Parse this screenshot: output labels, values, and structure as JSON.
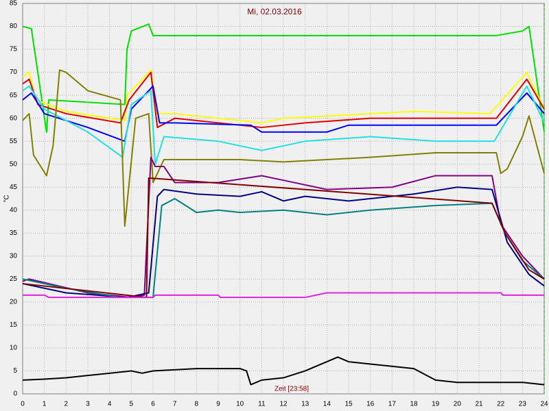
{
  "chart_data": {
    "type": "line",
    "title": "Mi, 02.03.2016",
    "y_label": "°C",
    "x_label": "Zeit [23:58]",
    "xlim": [
      0,
      24
    ],
    "ylim": [
      0,
      85
    ],
    "xticks": [
      0,
      1,
      2,
      3,
      4,
      5,
      6,
      7,
      8,
      9,
      10,
      11,
      12,
      13,
      14,
      15,
      16,
      17,
      18,
      19,
      20,
      21,
      22,
      23,
      24
    ],
    "yticks": [
      0,
      5,
      10,
      15,
      20,
      25,
      30,
      35,
      40,
      45,
      50,
      55,
      60,
      65,
      70,
      75,
      80,
      85
    ],
    "grid": true,
    "series": [
      {
        "color": "#00e000",
        "x": [
          0,
          0.4,
          1.1,
          1.2,
          4.7,
          4.8,
          5,
          5.8,
          6,
          12,
          21.8,
          23,
          23.3,
          24
        ],
        "values": [
          80,
          79.5,
          57,
          64,
          63,
          75,
          79,
          80.5,
          78,
          78,
          78,
          79,
          80,
          57
        ]
      },
      {
        "color": "#ffff00",
        "x": [
          0,
          0.3,
          0.6,
          2,
          4.7,
          4.8,
          5.9,
          6.2,
          7,
          11,
          12,
          16,
          18,
          21.5,
          23.2,
          24
        ],
        "values": [
          69,
          70,
          64,
          61.5,
          59.5,
          65,
          70.5,
          61,
          61,
          59,
          60,
          61,
          61.5,
          61,
          70,
          62
        ]
      },
      {
        "color": "#e00000",
        "x": [
          0,
          0.3,
          0.7,
          2,
          4.5,
          4.9,
          5.9,
          6.2,
          7,
          11,
          13,
          16,
          21.8,
          23.2,
          24
        ],
        "values": [
          67.5,
          68.5,
          63,
          61,
          59,
          64,
          70,
          58,
          60,
          58,
          59,
          60,
          60,
          68.5,
          62
        ]
      },
      {
        "color": "#0000ff",
        "x": [
          0,
          0.4,
          1,
          3,
          4.7,
          5,
          6,
          6.3,
          7,
          10.5,
          11,
          14,
          15,
          21.8,
          23.2,
          24
        ],
        "values": [
          64,
          65.5,
          61,
          58,
          55,
          62,
          67,
          59,
          59,
          58.5,
          57,
          57,
          58.5,
          58.5,
          65.5,
          61
        ]
      },
      {
        "color": "#20e0e0",
        "x": [
          0,
          0.3,
          1,
          3,
          4.6,
          5,
          5.9,
          6.1,
          6.5,
          9,
          11,
          13,
          16,
          19,
          21.7,
          23.2,
          24
        ],
        "values": [
          66,
          67,
          62,
          57,
          51.5,
          63,
          66,
          50,
          56,
          55,
          53,
          55,
          56,
          55,
          55,
          67,
          59
        ]
      },
      {
        "color": "#808000",
        "x": [
          0,
          0.3,
          0.5,
          1.1,
          1.4,
          1.7,
          2,
          3,
          4.5,
          4.7,
          5.2,
          5.8,
          6,
          6.5,
          10,
          12,
          16,
          19,
          21.8,
          22,
          22.3,
          23,
          23.3,
          24
        ],
        "values": [
          59.5,
          61,
          52,
          47.5,
          54,
          70.5,
          70,
          66,
          64,
          36.5,
          60,
          61,
          46,
          51,
          51,
          50.5,
          51.5,
          52.5,
          52.5,
          48,
          49,
          56,
          60.5,
          48
        ]
      },
      {
        "color": "#800080",
        "x": [
          0,
          0.3,
          3,
          5,
          5.6,
          5.9,
          6.1,
          6.5,
          7,
          9,
          11,
          12,
          14,
          17,
          19,
          21.6,
          22,
          23,
          24
        ],
        "values": [
          24.5,
          25,
          22,
          21,
          21.5,
          51.5,
          49.5,
          49.5,
          46,
          46,
          47.5,
          46.5,
          44.5,
          45,
          47.5,
          47.5,
          37,
          30,
          25
        ]
      },
      {
        "color": "#000080",
        "x": [
          0,
          2,
          4.8,
          5.8,
          6.2,
          6.5,
          8,
          10,
          11,
          12,
          13,
          15,
          18,
          20,
          21.6,
          22.3,
          23.3,
          24
        ],
        "values": [
          24,
          22,
          21,
          22,
          43,
          44.5,
          43.5,
          43,
          44,
          42,
          43,
          42,
          43.5,
          45,
          44.5,
          33,
          26,
          23.5
        ]
      },
      {
        "color": "#008080",
        "x": [
          0,
          2,
          4.5,
          6,
          6.4,
          7,
          8,
          9,
          10,
          12,
          14,
          16,
          19,
          21.6,
          22.2,
          23,
          24
        ],
        "values": [
          25,
          23,
          21,
          21,
          41,
          42.5,
          39.5,
          40,
          39.5,
          40,
          39,
          40,
          41,
          41.5,
          35,
          29,
          25
        ]
      },
      {
        "color": "#800000",
        "x": [
          0,
          5.7,
          5.8,
          21.6,
          22.2,
          23.3,
          24
        ],
        "values": [
          24,
          21,
          47,
          41.5,
          35,
          27,
          25
        ]
      },
      {
        "color": "#e020e0",
        "x": [
          0,
          1,
          1.2,
          6,
          6.1,
          9,
          9.1,
          13,
          14,
          22,
          22.1,
          24
        ],
        "values": [
          21.5,
          21.5,
          21,
          21,
          21.5,
          21.5,
          21,
          21,
          22,
          22,
          21.5,
          21.5
        ]
      },
      {
        "color": "#000000",
        "x": [
          0,
          1,
          2,
          3,
          4,
          5,
          5.5,
          6,
          8,
          10,
          10.3,
          10.5,
          11,
          12,
          13,
          14.5,
          15,
          17,
          18,
          19,
          20,
          22,
          23,
          24
        ],
        "values": [
          3,
          3.2,
          3.5,
          4,
          4.5,
          5,
          4.5,
          5,
          5.5,
          5.5,
          5,
          2,
          3,
          3.5,
          5,
          8,
          7,
          6,
          5.5,
          3,
          2.5,
          2.5,
          2.5,
          2
        ]
      }
    ]
  }
}
